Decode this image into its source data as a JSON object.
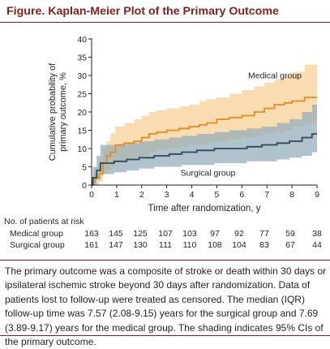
{
  "figure": {
    "title": "Figure. Kaplan-Meier Plot of the Primary Outcome",
    "caption": "The primary outcome was a composite of stroke or death within 30 days or ipsilateral ischemic stroke beyond 30 days after randomization. Data of patients lost to follow-up were treated as censored. The median (IQR) follow-up time was 7.57 (2.08-9.15) years for the surgical group and 7.69 (3.89-9.17) years for the medical group. The shading indicates 95% CIs of the primary outcome."
  },
  "colors": {
    "accent": "#8a1c1c",
    "medical_line": "#e8891e",
    "medical_band": "#f9d6a6",
    "surgical_line": "#2e4a59",
    "surgical_band": "#8fa9b8"
  },
  "chart_data": {
    "type": "line",
    "subtype": "kaplan-meier step",
    "xlabel": "Time after randomization, y",
    "ylabel": "Cumulative probability of primary outcome, %",
    "xlim": [
      0,
      9
    ],
    "ylim": [
      0,
      40
    ],
    "x_ticks": [
      0,
      1,
      2,
      3,
      4,
      5,
      6,
      7,
      8,
      9
    ],
    "y_ticks": [
      0,
      5,
      10,
      15,
      20,
      25,
      30,
      35,
      40
    ],
    "grid": false,
    "series": [
      {
        "name": "Medical group",
        "color": "#e8891e",
        "band_color": "#f9d6a6",
        "steps": [
          [
            0,
            0
          ],
          [
            0.05,
            1
          ],
          [
            0.15,
            2
          ],
          [
            0.3,
            3
          ],
          [
            0.45,
            6
          ],
          [
            0.6,
            8
          ],
          [
            0.75,
            9
          ],
          [
            0.95,
            11
          ],
          [
            1.3,
            11.5
          ],
          [
            1.7,
            12
          ],
          [
            2.0,
            13
          ],
          [
            2.3,
            14
          ],
          [
            2.6,
            14.5
          ],
          [
            3.0,
            15
          ],
          [
            3.5,
            15.5
          ],
          [
            3.9,
            16
          ],
          [
            4.3,
            16.5
          ],
          [
            4.6,
            17
          ],
          [
            5.0,
            18
          ],
          [
            5.5,
            18.5
          ],
          [
            6.0,
            19
          ],
          [
            6.5,
            20
          ],
          [
            6.9,
            21
          ],
          [
            7.3,
            22
          ],
          [
            7.7,
            22.5
          ],
          [
            8.0,
            23
          ],
          [
            8.5,
            24
          ],
          [
            9.0,
            24
          ]
        ],
        "ci_lower": [
          [
            0,
            0
          ],
          [
            0.05,
            0
          ],
          [
            0.15,
            0
          ],
          [
            0.3,
            1
          ],
          [
            0.45,
            3
          ],
          [
            0.6,
            4
          ],
          [
            0.75,
            5
          ],
          [
            0.95,
            6.5
          ],
          [
            1.3,
            7
          ],
          [
            1.7,
            7.5
          ],
          [
            2.0,
            8
          ],
          [
            2.3,
            9
          ],
          [
            2.6,
            9.5
          ],
          [
            3.0,
            10
          ],
          [
            3.5,
            10.5
          ],
          [
            3.9,
            11
          ],
          [
            4.3,
            11
          ],
          [
            4.6,
            11.5
          ],
          [
            5.0,
            12
          ],
          [
            5.5,
            12.5
          ],
          [
            6.0,
            13
          ],
          [
            6.5,
            13.5
          ],
          [
            6.9,
            14
          ],
          [
            7.3,
            14.5
          ],
          [
            7.7,
            15
          ],
          [
            8.0,
            16
          ],
          [
            8.5,
            17
          ],
          [
            9.0,
            17
          ]
        ],
        "ci_upper": [
          [
            0,
            0
          ],
          [
            0.05,
            3
          ],
          [
            0.15,
            5
          ],
          [
            0.3,
            7
          ],
          [
            0.45,
            10
          ],
          [
            0.6,
            12
          ],
          [
            0.75,
            14
          ],
          [
            0.95,
            16
          ],
          [
            1.3,
            17
          ],
          [
            1.7,
            18
          ],
          [
            2.0,
            19
          ],
          [
            2.3,
            20
          ],
          [
            2.6,
            20.5
          ],
          [
            3.0,
            21
          ],
          [
            3.5,
            21.5
          ],
          [
            3.9,
            22
          ],
          [
            4.3,
            23
          ],
          [
            4.6,
            23.5
          ],
          [
            5.0,
            24
          ],
          [
            5.5,
            25
          ],
          [
            6.0,
            26
          ],
          [
            6.5,
            27
          ],
          [
            6.9,
            28
          ],
          [
            7.3,
            29
          ],
          [
            7.7,
            30
          ],
          [
            8.0,
            31
          ],
          [
            8.5,
            33
          ],
          [
            9.0,
            33
          ]
        ]
      },
      {
        "name": "Surgical group",
        "color": "#2e4a59",
        "band_color": "#8fa9b8",
        "steps": [
          [
            0,
            0
          ],
          [
            0.05,
            2
          ],
          [
            0.2,
            4
          ],
          [
            0.35,
            6
          ],
          [
            0.9,
            6.5
          ],
          [
            1.4,
            7
          ],
          [
            1.9,
            7.5
          ],
          [
            2.5,
            8
          ],
          [
            3.1,
            8.5
          ],
          [
            3.6,
            9
          ],
          [
            4.2,
            9.5
          ],
          [
            4.9,
            10
          ],
          [
            5.5,
            10
          ],
          [
            6.2,
            10.5
          ],
          [
            6.8,
            11
          ],
          [
            7.4,
            11.5
          ],
          [
            7.9,
            12
          ],
          [
            8.4,
            13
          ],
          [
            8.8,
            14
          ],
          [
            9.0,
            14
          ]
        ],
        "ci_lower": [
          [
            0,
            0
          ],
          [
            0.05,
            0
          ],
          [
            0.2,
            1.5
          ],
          [
            0.35,
            3
          ],
          [
            0.9,
            3.5
          ],
          [
            1.4,
            4
          ],
          [
            1.9,
            4.5
          ],
          [
            2.5,
            5
          ],
          [
            3.1,
            5
          ],
          [
            3.6,
            5.5
          ],
          [
            4.2,
            5.5
          ],
          [
            4.9,
            6
          ],
          [
            5.5,
            6
          ],
          [
            6.2,
            6.5
          ],
          [
            6.8,
            6.5
          ],
          [
            7.4,
            7
          ],
          [
            7.9,
            7.5
          ],
          [
            8.4,
            8
          ],
          [
            8.8,
            9
          ],
          [
            9.0,
            9
          ]
        ],
        "ci_upper": [
          [
            0,
            0
          ],
          [
            0.05,
            5
          ],
          [
            0.2,
            8
          ],
          [
            0.35,
            11
          ],
          [
            0.9,
            11
          ],
          [
            1.4,
            11.5
          ],
          [
            1.9,
            12
          ],
          [
            2.5,
            12.5
          ],
          [
            3.1,
            13
          ],
          [
            3.6,
            13.5
          ],
          [
            4.2,
            14
          ],
          [
            4.9,
            14.5
          ],
          [
            5.5,
            15
          ],
          [
            6.2,
            15.5
          ],
          [
            6.8,
            16
          ],
          [
            7.4,
            17
          ],
          [
            7.9,
            18
          ],
          [
            8.4,
            20
          ],
          [
            8.8,
            22
          ],
          [
            9.0,
            22
          ]
        ]
      }
    ],
    "annotations": [
      {
        "text": "Medical group",
        "x": 6.25,
        "y": 29.2
      },
      {
        "text": "Surgical group",
        "x": 3.55,
        "y": 2.6
      }
    ]
  },
  "risk_table": {
    "header": "No. of patients at risk",
    "times": [
      0,
      1,
      2,
      3,
      4,
      5,
      6,
      7,
      8,
      9
    ],
    "rows": [
      {
        "label": "Medical group",
        "values": [
          163,
          145,
          125,
          107,
          103,
          97,
          92,
          77,
          59,
          38
        ]
      },
      {
        "label": "Surgical group",
        "values": [
          161,
          147,
          130,
          111,
          110,
          108,
          104,
          83,
          67,
          44
        ]
      }
    ]
  }
}
